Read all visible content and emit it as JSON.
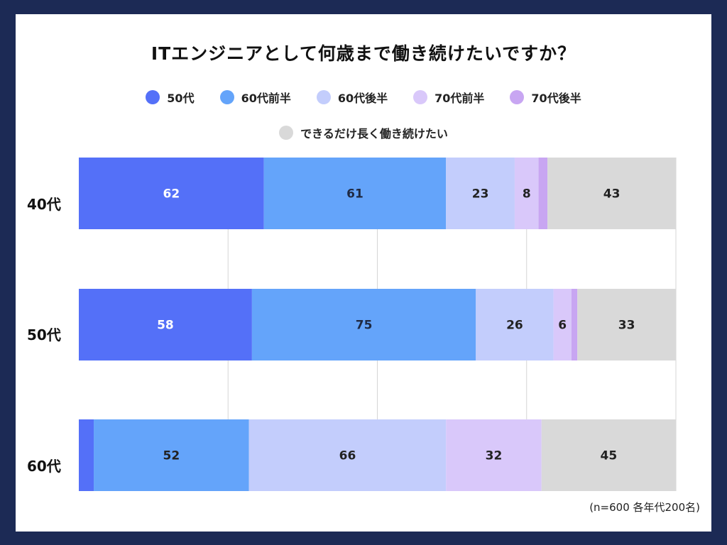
{
  "chart_data": {
    "type": "bar",
    "orientation": "horizontal",
    "stacked": true,
    "title": "ITエンジニアとして何歳まで働き続けたいですか？",
    "categories": [
      "40代",
      "50代",
      "60代"
    ],
    "series": [
      {
        "name": "50代",
        "color": "#5470f8",
        "values": [
          62,
          58,
          5
        ],
        "labels": [
          "62",
          "58",
          ""
        ]
      },
      {
        "name": "60代前半",
        "color": "#64a4fa",
        "values": [
          61,
          75,
          52
        ],
        "labels": [
          "61",
          "75",
          "52"
        ]
      },
      {
        "name": "60代後半",
        "color": "#c3cdfc",
        "values": [
          23,
          26,
          66
        ],
        "labels": [
          "23",
          "26",
          "66"
        ]
      },
      {
        "name": "70代前半",
        "color": "#d9c8fa",
        "values": [
          8,
          6,
          32
        ],
        "labels": [
          "8",
          "6",
          "32"
        ]
      },
      {
        "name": "70代後半",
        "color": "#c8a6f2",
        "values": [
          3,
          2,
          0
        ],
        "labels": [
          "",
          "",
          ""
        ]
      },
      {
        "name": "できるだけ長く働き続けたい",
        "color": "#d9d9d9",
        "values": [
          43,
          33,
          45
        ],
        "labels": [
          "43",
          "33",
          "45"
        ]
      }
    ],
    "xlim": [
      0,
      200
    ],
    "grid": true,
    "legend": "top"
  },
  "note": "(n=600 各年代200名)"
}
